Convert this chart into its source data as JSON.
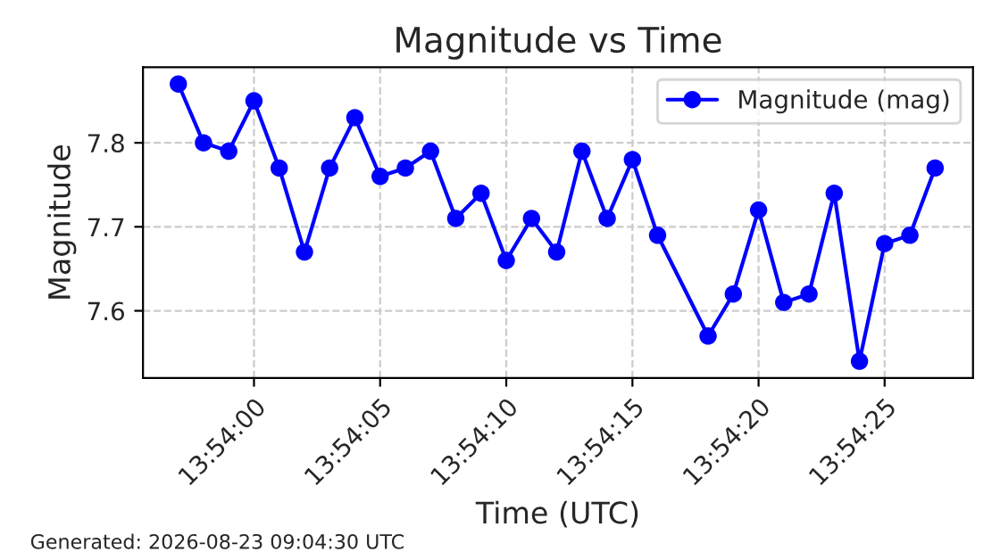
{
  "chart_data": {
    "type": "line",
    "title": "Magnitude vs Time",
    "xlabel": "Time (UTC)",
    "ylabel": "Magnitude",
    "x": [
      13.899167,
      13.899444,
      13.899722,
      13.9,
      13.900278,
      13.900556,
      13.900833,
      13.901111,
      13.901389,
      13.901667,
      13.901944,
      13.902222,
      13.9025,
      13.902778,
      13.903056,
      13.903333,
      13.903611,
      13.903889,
      13.904167,
      13.904444,
      13.905,
      13.905278,
      13.905556,
      13.905833,
      13.906111,
      13.906389,
      13.906667,
      13.906944,
      13.907222,
      13.9075
    ],
    "series": [
      {
        "name": "Magnitude (mag)",
        "color": "#0000ff",
        "values": [
          7.87,
          7.8,
          7.79,
          7.85,
          7.77,
          7.67,
          7.77,
          7.83,
          7.76,
          7.77,
          7.79,
          7.71,
          7.74,
          7.66,
          7.71,
          7.67,
          7.79,
          7.71,
          7.78,
          7.69,
          7.57,
          7.62,
          7.72,
          7.61,
          7.62,
          7.74,
          7.54,
          7.68,
          7.69,
          7.77
        ]
      }
    ],
    "xlim": [
      13.898778,
      13.907917
    ],
    "xticks": [
      {
        "value": 13.9,
        "label": "13:54:00"
      },
      {
        "value": 13.901389,
        "label": "13:54:05"
      },
      {
        "value": 13.902778,
        "label": "13:54:10"
      },
      {
        "value": 13.904167,
        "label": "13:54:15"
      },
      {
        "value": 13.905556,
        "label": "13:54:20"
      },
      {
        "value": 13.906944,
        "label": "13:54:25"
      }
    ],
    "ylim": [
      7.52,
      7.89
    ],
    "yticks": [
      7.6,
      7.7,
      7.8
    ],
    "grid": true,
    "legend": "top right",
    "marker": "circle",
    "line_style": "solid",
    "annotations": [
      "Generated: 2026-08-23 09:04:30 UTC"
    ]
  }
}
